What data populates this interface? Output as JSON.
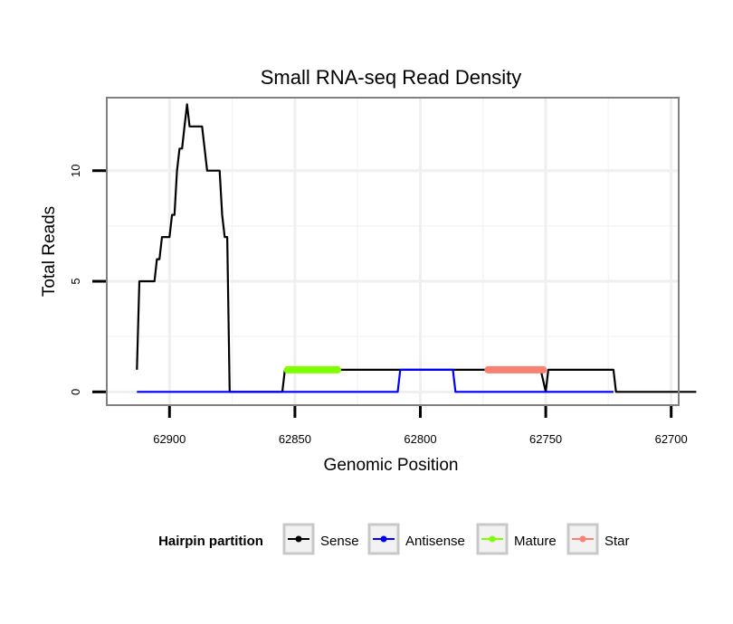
{
  "chart_data": {
    "type": "line",
    "title": "Small RNA-seq Read Density",
    "xlabel": "Genomic Position",
    "ylabel": "Total Reads",
    "x_reversed": true,
    "xlim": [
      62925,
      62697
    ],
    "ylim": [
      -0.6,
      13.3
    ],
    "x_ticks": [
      62900,
      62850,
      62800,
      62750,
      62700
    ],
    "x_tick_labels": [
      "62900",
      "62850",
      "62800",
      "62750",
      "62700"
    ],
    "y_ticks": [
      0,
      5,
      10
    ],
    "y_tick_labels": [
      "0",
      "5",
      "10"
    ],
    "grid": true,
    "legend": {
      "title": "Hairpin partition",
      "position": "bottom",
      "entries": [
        {
          "name": "Sense",
          "color": "#000000"
        },
        {
          "name": "Antisense",
          "color": "#0000ff"
        },
        {
          "name": "Mature",
          "color": "#7fff00"
        },
        {
          "name": "Star",
          "color": "#fa8072"
        }
      ]
    },
    "series": [
      {
        "name": "Sense",
        "color": "#000000",
        "points": [
          [
            62913,
            1
          ],
          [
            62912,
            5
          ],
          [
            62909,
            5
          ],
          [
            62908,
            5
          ],
          [
            62906,
            5
          ],
          [
            62905,
            6
          ],
          [
            62904,
            6
          ],
          [
            62903,
            7
          ],
          [
            62900,
            7
          ],
          [
            62899,
            8
          ],
          [
            62898,
            8
          ],
          [
            62897,
            10
          ],
          [
            62896,
            11
          ],
          [
            62895,
            11
          ],
          [
            62894,
            12
          ],
          [
            62893,
            13
          ],
          [
            62892,
            12
          ],
          [
            62889,
            12
          ],
          [
            62888,
            12
          ],
          [
            62887,
            12
          ],
          [
            62886,
            11
          ],
          [
            62885,
            10
          ],
          [
            62883,
            10
          ],
          [
            62882,
            10
          ],
          [
            62880,
            10
          ],
          [
            62879,
            8
          ],
          [
            62878,
            7
          ],
          [
            62877,
            7
          ],
          [
            62876,
            0
          ],
          [
            62855,
            0
          ],
          [
            62854,
            1
          ],
          [
            62752,
            1
          ],
          [
            62750,
            0
          ],
          [
            62749,
            1
          ],
          [
            62723,
            1
          ],
          [
            62722,
            0
          ],
          [
            62690,
            0
          ]
        ]
      },
      {
        "name": "Antisense",
        "color": "#0000ff",
        "points": [
          [
            62913,
            0
          ],
          [
            62809,
            0
          ],
          [
            62808,
            1
          ],
          [
            62787,
            1
          ],
          [
            62786,
            0
          ],
          [
            62723,
            0
          ]
        ]
      },
      {
        "name": "Mature",
        "color": "#7fff00",
        "points": [
          [
            62853,
            1
          ],
          [
            62833,
            1
          ]
        ]
      },
      {
        "name": "Star",
        "color": "#fa8072",
        "points": [
          [
            62773,
            1
          ],
          [
            62751,
            1
          ]
        ]
      }
    ]
  }
}
